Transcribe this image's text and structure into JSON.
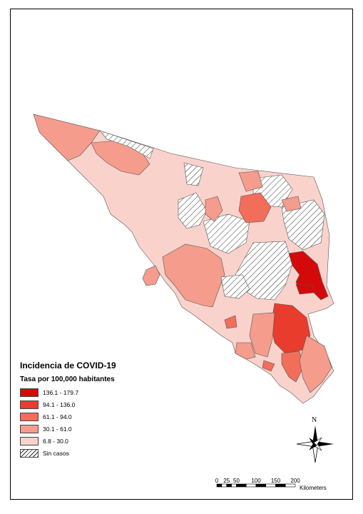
{
  "legend": {
    "title": "Incidencia de COVID-19",
    "subtitle": "Tasa por 100,000 habitantes",
    "items": [
      {
        "label": "136.1 - 179.7",
        "color": "#d40a0a"
      },
      {
        "label": "94.1 - 136.0",
        "color": "#e83c2c"
      },
      {
        "label": "61.1 - 94.0",
        "color": "#f26d5a"
      },
      {
        "label": "30.1 - 61.0",
        "color": "#f59c8c"
      },
      {
        "label": "6.8 - 30.0",
        "color": "#fad2cc"
      },
      {
        "label": "Sin casos",
        "color": "#ffffff",
        "pattern": "hatch"
      }
    ]
  },
  "north_arrow": {
    "label": "N",
    "icon": "compass-rose-icon"
  },
  "scale_bar": {
    "ticks": [
      "0",
      "25",
      "50",
      "100",
      "150",
      "200"
    ],
    "tick_values": [
      0,
      25,
      50,
      100,
      150,
      200
    ],
    "unit": "Kilometers"
  }
}
